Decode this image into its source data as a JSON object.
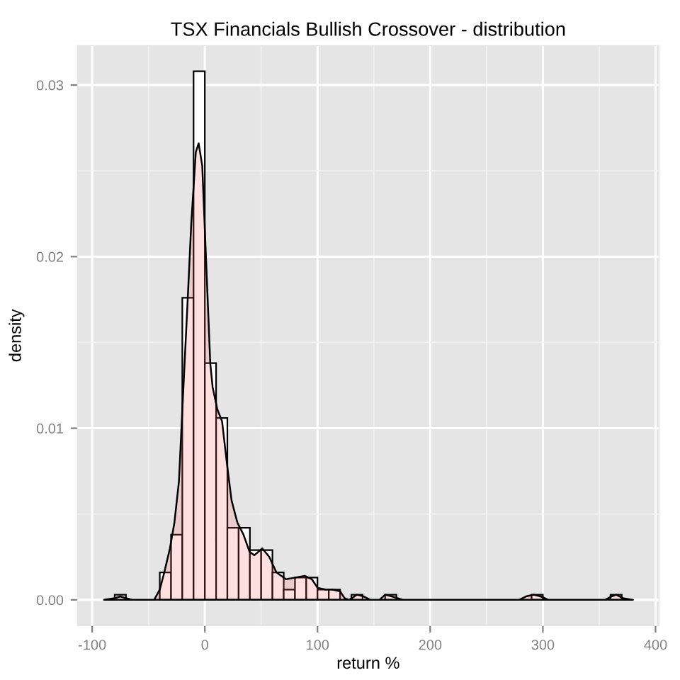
{
  "chart_data": {
    "type": "histogram",
    "title": "TSX Financials Bullish Crossover - distribution",
    "xlabel": "return %",
    "ylabel": "density",
    "series": [
      {
        "color": "#ffffff",
        "bins": [
          -80,
          -70,
          -60,
          -50,
          -40,
          -30,
          -20,
          -10,
          0,
          10,
          20,
          30,
          40,
          50,
          60,
          70,
          80,
          90,
          100,
          110,
          120,
          130,
          140,
          150,
          160,
          170,
          180,
          190,
          200,
          210,
          220,
          230,
          240,
          250,
          260,
          270,
          280,
          290,
          300,
          310,
          320,
          330,
          340,
          350,
          360,
          370
        ],
        "values": [
          0.0003,
          0,
          0,
          0,
          0.0016,
          0.0038,
          0.0176,
          0.0308,
          0.0138,
          0.0106,
          0.0042,
          0.0042,
          0.0029,
          0.0029,
          0.0016,
          0.0006,
          0.0013,
          0.0013,
          0.0006,
          0.0006,
          0,
          0.0003,
          0,
          0,
          0.0003,
          0,
          0,
          0,
          0,
          0,
          0,
          0,
          0,
          0,
          0,
          0,
          0,
          0.0003,
          0,
          0,
          0,
          0,
          0,
          0,
          0.0003
        ]
      },
      {
        "type": "area",
        "color": "#ff6666",
        "x": [
          -89.5,
          -80,
          -75,
          -70,
          -64,
          -48,
          -45,
          -40,
          -36,
          -31,
          -27,
          -23,
          -19,
          -15,
          -12,
          -8,
          -5.5,
          -2.3,
          0.6,
          4.8,
          6.9,
          11.1,
          15.3,
          19.5,
          23.7,
          28.9,
          34.3,
          39.7,
          43.9,
          51,
          57.2,
          63.5,
          72,
          80.3,
          88.7,
          95,
          100,
          107,
          113,
          120,
          124,
          128,
          135,
          141,
          147,
          155,
          160,
          166,
          176,
          279,
          285,
          292,
          298,
          305,
          355,
          361,
          365,
          371,
          380
        ],
        "values": [
          0,
          0.0001,
          0.0002,
          0.0001,
          0,
          0,
          0,
          0.0006,
          0.0016,
          0.003,
          0.0045,
          0.0069,
          0.0124,
          0.0178,
          0.022,
          0.0261,
          0.0266,
          0.0253,
          0.0206,
          0.0138,
          0.0124,
          0.0111,
          0.0104,
          0.008,
          0.0058,
          0.0045,
          0.0038,
          0.0028,
          0.0026,
          0.003,
          0.0025,
          0.0016,
          0.0012,
          0.0013,
          0.0014,
          0.0012,
          0.0007,
          0.0006,
          0.0006,
          0.0005,
          0.0001,
          0,
          0.0003,
          0.0002,
          0,
          0,
          0.0003,
          0.0002,
          0,
          0,
          0.0002,
          0.0003,
          0.0002,
          0,
          0,
          0.0002,
          0.0003,
          0.0001,
          0
        ]
      }
    ],
    "xlim": [
      -113,
      403
    ],
    "xticks": [
      -100,
      0,
      100,
      200,
      300,
      400
    ],
    "ylim": [
      -0.0015,
      0.0323
    ],
    "yticks": [
      {
        "value": 0,
        "label": "0.00"
      },
      0.01,
      0.02,
      0.03
    ],
    "grid": true
  }
}
